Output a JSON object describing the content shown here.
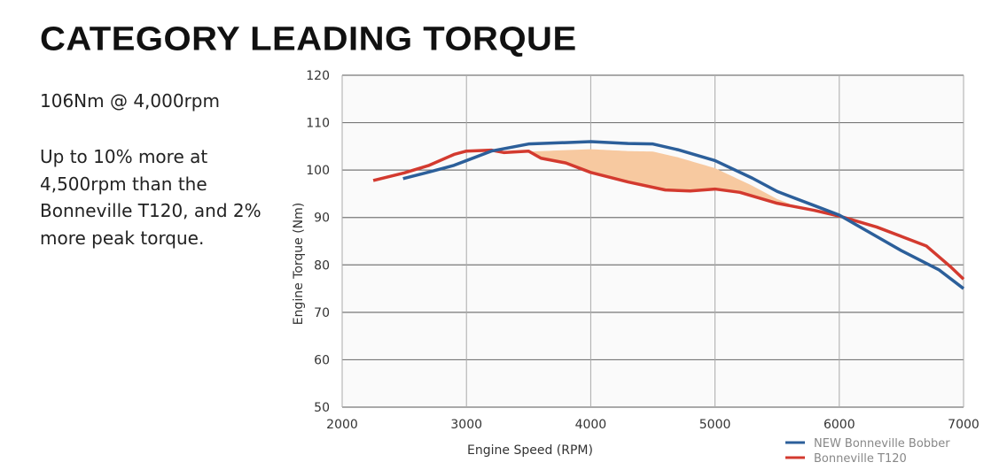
{
  "title": "CATEGORY LEADING TORQUE",
  "stat": "106Nm @ 4,000rpm",
  "description": "Up to 10% more at 4,500rpm than the Bonneville T120, and 2% more peak torque.",
  "chart_data": {
    "type": "line",
    "title": "",
    "xlabel": "Engine Speed (RPM)",
    "ylabel": "Engine Torque (Nm)",
    "xlim": [
      2000,
      7000
    ],
    "ylim": [
      50,
      120
    ],
    "xticks": [
      2000,
      3000,
      4000,
      5000,
      6000,
      7000
    ],
    "yticks": [
      50,
      60,
      70,
      80,
      90,
      100,
      110,
      120
    ],
    "grid": true,
    "legend_position": "bottom-right",
    "shaded_gain_color": "#f7c9a0",
    "series": [
      {
        "name": "NEW Bonneville Bobber",
        "color": "#2c5f9a",
        "x": [
          2490,
          2700,
          2900,
          3000,
          3200,
          3500,
          3800,
          4000,
          4300,
          4500,
          4700,
          5000,
          5300,
          5500,
          5800,
          6000,
          6300,
          6500,
          6800,
          7000
        ],
        "y": [
          98.2,
          99.6,
          101.0,
          102.0,
          104.0,
          105.5,
          105.8,
          106.0,
          105.6,
          105.5,
          104.3,
          102.0,
          98.3,
          95.5,
          92.5,
          90.5,
          86.0,
          83.0,
          79.0,
          75.0
        ]
      },
      {
        "name": "Bonneville T120",
        "color": "#d33a2f",
        "x": [
          2250,
          2500,
          2700,
          2900,
          3000,
          3200,
          3300,
          3500,
          3600,
          3800,
          4000,
          4300,
          4600,
          4800,
          5000,
          5200,
          5500,
          5800,
          6000,
          6300,
          6500,
          6700,
          6900,
          7000
        ],
        "y": [
          97.8,
          99.4,
          101.0,
          103.3,
          104.0,
          104.2,
          103.7,
          104.0,
          102.5,
          101.5,
          99.5,
          97.5,
          95.8,
          95.6,
          96.0,
          95.3,
          93.0,
          91.5,
          90.3,
          88.0,
          86.0,
          84.0,
          79.5,
          77.0
        ]
      }
    ]
  }
}
